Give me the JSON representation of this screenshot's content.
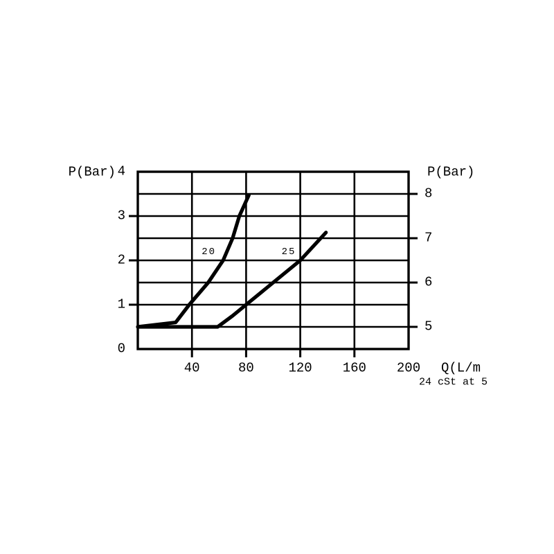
{
  "chart_data": {
    "type": "line",
    "title": "",
    "description": "Pressure drop versus flow curves",
    "left_axis": {
      "label": "P(Bar)",
      "range": [
        0,
        4
      ],
      "ticks": [
        4,
        3,
        2,
        1,
        0
      ]
    },
    "right_axis": {
      "label": "P(Bar)",
      "range": [
        4.5,
        8.5
      ],
      "ticks": [
        8,
        7,
        6,
        5
      ]
    },
    "x_axis": {
      "label": "Q(L/m",
      "range": [
        0,
        200
      ],
      "ticks": [
        40,
        80,
        120,
        160,
        200
      ]
    },
    "note": "24 cSt at 5",
    "grid": {
      "x_step": 40,
      "y_step": 0.5,
      "grid_on": true
    },
    "series": [
      {
        "name": "20",
        "label": "20",
        "label_at": {
          "q": 52.5,
          "p": 2.19
        },
        "points": [
          [
            0,
            0.5
          ],
          [
            28,
            0.6
          ],
          [
            38,
            1.0
          ],
          [
            52,
            1.5
          ],
          [
            63,
            2.0
          ],
          [
            70,
            2.5
          ],
          [
            75,
            3.0
          ],
          [
            82,
            3.47
          ]
        ]
      },
      {
        "name": "25",
        "label": "25",
        "label_at": {
          "q": 111.5,
          "p": 2.19
        },
        "points": [
          [
            0,
            0.5
          ],
          [
            59,
            0.5
          ],
          [
            70,
            0.75
          ],
          [
            80,
            1.0
          ],
          [
            100,
            1.5
          ],
          [
            120,
            2.0
          ],
          [
            139,
            2.63
          ]
        ]
      }
    ],
    "colors": {
      "line": "#000000",
      "grid": "#000000",
      "text": "#000000",
      "background": "#ffffff"
    }
  }
}
